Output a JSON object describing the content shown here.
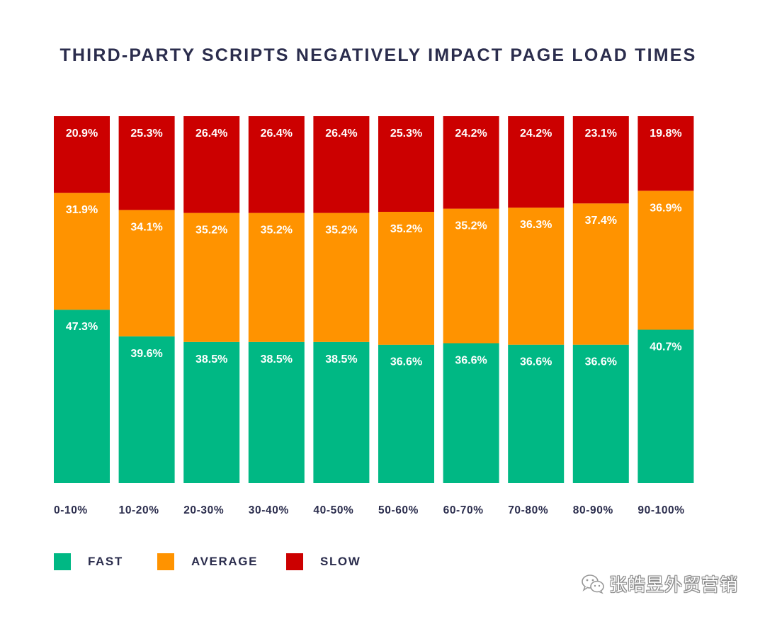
{
  "chart_data": {
    "type": "bar",
    "stacked": true,
    "normalized_percent": true,
    "title": "THIRD-PARTY SCRIPTS NEGATIVELY IMPACT PAGE LOAD TIMES",
    "xlabel": "",
    "ylabel": "",
    "ylim": [
      0,
      100
    ],
    "grid": false,
    "legend_position": "bottom-left",
    "categories": [
      "0-10%",
      "10-20%",
      "20-30%",
      "30-40%",
      "40-50%",
      "50-60%",
      "60-70%",
      "70-80%",
      "80-90%",
      "90-100%"
    ],
    "series": [
      {
        "name": "FAST",
        "color": "#00b884",
        "values": [
          47.3,
          39.6,
          38.5,
          38.5,
          38.5,
          36.6,
          36.6,
          36.6,
          36.6,
          40.7
        ],
        "labels": [
          "47.3%",
          "39.6%",
          "38.5%",
          "38.5%",
          "38.5%",
          "36.6%",
          "36.6%",
          "36.6%",
          "36.6%",
          "40.7%"
        ]
      },
      {
        "name": "AVERAGE",
        "color": "#ff9300",
        "values": [
          31.9,
          34.1,
          35.2,
          35.2,
          35.2,
          35.2,
          35.2,
          36.3,
          37.4,
          36.9
        ],
        "labels": [
          "31.9%",
          "34.1%",
          "35.2%",
          "35.2%",
          "35.2%",
          "35.2%",
          "35.2%",
          "36.3%",
          "37.4%",
          "36.9%"
        ]
      },
      {
        "name": "SLOW",
        "color": "#cc0000",
        "values": [
          20.9,
          25.3,
          26.4,
          26.4,
          26.4,
          25.3,
          24.2,
          24.2,
          23.1,
          19.8
        ],
        "labels": [
          "20.9%",
          "25.3%",
          "26.4%",
          "26.4%",
          "26.4%",
          "25.3%",
          "24.2%",
          "24.2%",
          "23.1%",
          "19.8%"
        ]
      }
    ]
  },
  "colors": {
    "title_text": "#2b2d4d",
    "bar_label_text": "#ffffff",
    "background": "#ffffff"
  },
  "watermark": {
    "text": "张皓昱外贸营销",
    "icon": "wechat-icon"
  }
}
